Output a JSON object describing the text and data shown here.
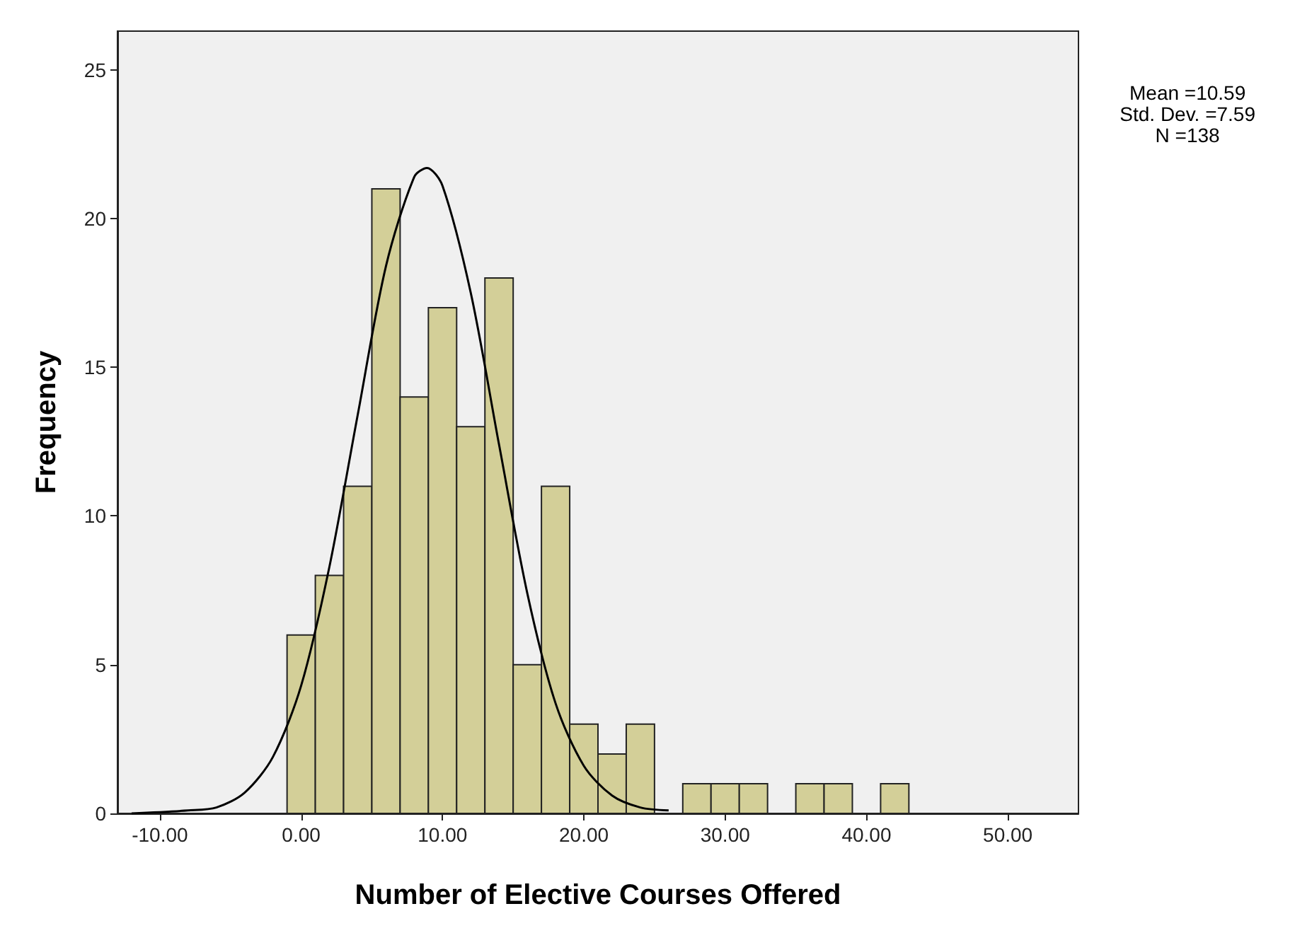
{
  "chart_data": {
    "type": "histogram",
    "xlabel": "Number of Elective Courses Offered",
    "ylabel": "Frequency",
    "bins": [
      -1,
      1,
      3,
      5,
      7,
      9,
      11,
      13,
      15,
      17,
      19,
      21,
      23,
      25,
      27,
      29,
      31,
      33,
      35,
      37,
      39,
      41,
      43
    ],
    "values": [
      6,
      8,
      11,
      21,
      14,
      17,
      13,
      18,
      5,
      11,
      3,
      2,
      3,
      0,
      1,
      1,
      1,
      0,
      1,
      1,
      0,
      1
    ],
    "color": "#d3cf98",
    "series": [
      {
        "type": "line",
        "color": "#000000",
        "x": [
          -12,
          -8,
          -6,
          -4,
          -2,
          0,
          2,
          4,
          6,
          8,
          8.9,
          10,
          12,
          14,
          16,
          18,
          20,
          22,
          24,
          26
        ],
        "values": [
          0.0,
          0.1,
          0.2,
          0.7,
          1.9,
          4.3,
          8.3,
          13.4,
          18.4,
          21.4,
          21.7,
          21.1,
          17.5,
          12.4,
          7.4,
          3.7,
          1.6,
          0.6,
          0.2,
          0.1
        ]
      }
    ],
    "xlim": [
      -13,
      55
    ],
    "ylim": [
      0,
      26.3
    ],
    "xticks": [
      {
        "value": -10,
        "label": "-10.00"
      },
      {
        "value": 0,
        "label": "0.00"
      },
      {
        "value": 10,
        "label": "10.00"
      },
      {
        "value": 20,
        "label": "20.00"
      },
      {
        "value": 30,
        "label": "30.00"
      },
      {
        "value": 40,
        "label": "40.00"
      },
      {
        "value": 50,
        "label": "50.00"
      }
    ],
    "yticks": [
      0,
      5,
      10,
      15,
      20,
      25
    ],
    "grid": false,
    "marker": "none",
    "line_style": "solid",
    "annotations": [
      "Mean =10.59\nStd. Dev. =7.59\nN =138"
    ]
  }
}
